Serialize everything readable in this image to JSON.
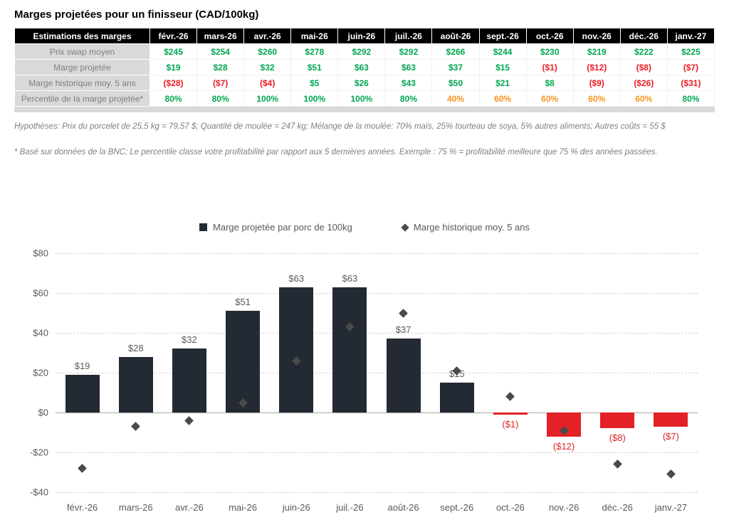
{
  "title": "Marges projetées pour un finisseur (CAD/100kg)",
  "colors": {
    "green": "#00a651",
    "red": "#ed1c24",
    "orange": "#f7941d",
    "bar_positive": "#232a34",
    "bar_negative": "#e32126",
    "diamond": "#4a4a4a"
  },
  "table": {
    "header": [
      "Estimations des marges",
      "févr.-26",
      "mars-26",
      "avr.-26",
      "mai-26",
      "juin-26",
      "juil.-26",
      "août-26",
      "sept.-26",
      "oct.-26",
      "nov.-26",
      "déc.-26",
      "janv.-27"
    ],
    "rows": [
      {
        "label": "Prix swap moyen",
        "type": "price",
        "values": [
          "$245",
          "$254",
          "$260",
          "$278",
          "$292",
          "$292",
          "$266",
          "$244",
          "$230",
          "$219",
          "$222",
          "$225"
        ]
      },
      {
        "label": "Marge projetée",
        "type": "signed",
        "values": [
          "$19",
          "$28",
          "$32",
          "$51",
          "$63",
          "$63",
          "$37",
          "$15",
          "($1)",
          "($12)",
          "($8)",
          "($7)"
        ]
      },
      {
        "label": "Marge historique moy. 5 ans",
        "type": "signed",
        "values": [
          "($28)",
          "($7)",
          "($4)",
          "$5",
          "$26",
          "$43",
          "$50",
          "$21",
          "$8",
          "($9)",
          "($26)",
          "($31)"
        ]
      },
      {
        "label": "Percentile de la marge projetée*",
        "type": "percentile",
        "values": [
          "80%",
          "80%",
          "100%",
          "100%",
          "100%",
          "80%",
          "40%",
          "60%",
          "60%",
          "60%",
          "60%",
          "80%"
        ]
      }
    ]
  },
  "footnote1": "Hypothèses: Prix du porcelet de 25,5 kg = 79,57 $; Quantité de moulée = 247 kg; Mélange de la moulée: 70% maïs, 25% tourteau de soya, 5% autres aliments; Autres coûts = 55 $",
  "footnote2": "* Basé sur données de la BNC; Le percentile classe votre profitabilité par rapport aux 5 dernières années. Exemple : 75 % = profitabilité meilleure que 75 % des années passées.",
  "chart_data": {
    "type": "bar",
    "title": "",
    "categories": [
      "févr.-26",
      "mars-26",
      "avr.-26",
      "mai-26",
      "juin-26",
      "juil.-26",
      "août-26",
      "sept.-26",
      "oct.-26",
      "nov.-26",
      "déc.-26",
      "janv.-27"
    ],
    "series": [
      {
        "name": "Marge projetée par porc de 100kg",
        "style": "bar",
        "values": [
          19,
          28,
          32,
          51,
          63,
          63,
          37,
          15,
          -1,
          -12,
          -8,
          -7
        ],
        "labels": [
          "$19",
          "$28",
          "$32",
          "$51",
          "$63",
          "$63",
          "$37",
          "$15",
          "($1)",
          "($12)",
          "($8)",
          "($7)"
        ]
      },
      {
        "name": "Marge historique moy. 5 ans",
        "style": "diamond",
        "values": [
          -28,
          -7,
          -4,
          5,
          26,
          43,
          50,
          21,
          8,
          -9,
          -26,
          -31
        ]
      }
    ],
    "ylim": [
      -40,
      80
    ],
    "yticks": [
      {
        "v": 80,
        "label": "$80"
      },
      {
        "v": 60,
        "label": "$60"
      },
      {
        "v": 40,
        "label": "$40"
      },
      {
        "v": 20,
        "label": "$20"
      },
      {
        "v": 0,
        "label": "$0"
      },
      {
        "v": -20,
        "label": "-$20"
      },
      {
        "v": -40,
        "label": "-$40"
      }
    ],
    "grid": "horizontal-dashed",
    "legend_position": "top-center"
  }
}
